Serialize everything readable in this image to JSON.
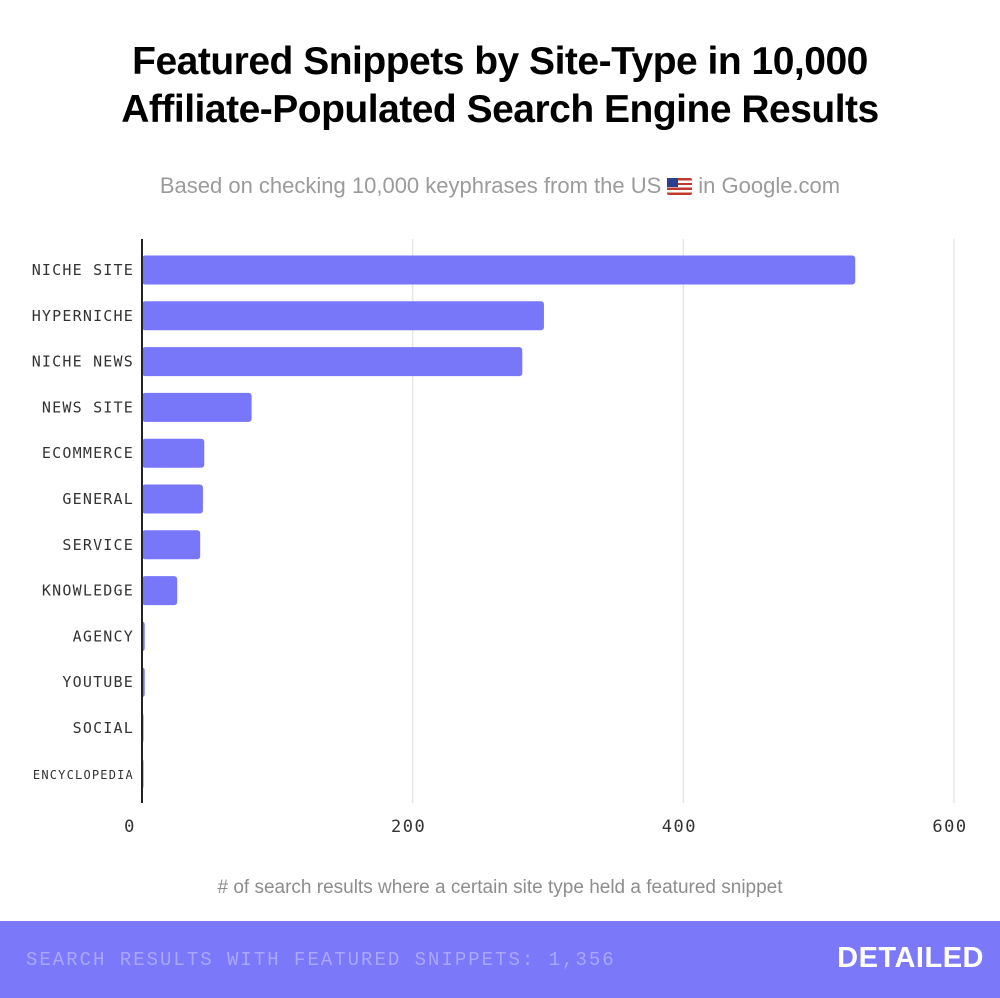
{
  "title_line1": "Featured Snippets by Site-Type in 10,000",
  "title_line2": "Affiliate-Populated Search Engine Results",
  "subtitle_before": "Based on checking 10,000 keyphrases from the US",
  "subtitle_after": "in Google.com",
  "flag_icon": "us-flag-icon",
  "footer_text": "SEARCH RESULTS WITH FEATURED SNIPPETS: 1,356",
  "brand": "DETAILED",
  "colors": {
    "bar": "#7876f9",
    "footer": "#7b78fa",
    "grid": "#e8e8e8",
    "axis": "#222222"
  },
  "chart_data": {
    "type": "bar",
    "orientation": "horizontal",
    "categories": [
      "NICHE SITE",
      "HYPERNICHE",
      "NICHE NEWS",
      "NEWS SITE",
      "ECOMMERCE",
      "GENERAL",
      "SERVICE",
      "KNOWLEDGE",
      "AGENCY",
      "YOUTUBE",
      "SOCIAL",
      "ENCYCLOPEDIA"
    ],
    "values": [
      527,
      297,
      281,
      81,
      46,
      45,
      43,
      26,
      2,
      2,
      1,
      1
    ],
    "xlabel": "# of search results where a certain site type held a featured snippet",
    "ylabel": "",
    "xlim": [
      0,
      600
    ],
    "xticks": [
      0,
      200,
      400,
      600
    ],
    "grid": true
  }
}
